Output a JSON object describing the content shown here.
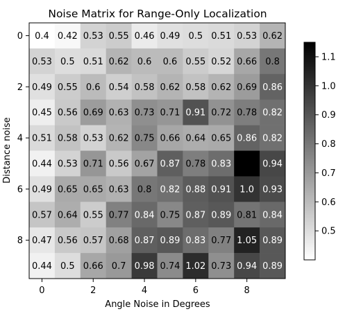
{
  "chart_data": {
    "type": "heatmap",
    "title": "Noise Matrix for Range-Only Localization",
    "xlabel": "Angle Noise in Degrees",
    "ylabel": "Distance noise",
    "x_ticks": [
      "0",
      "2",
      "4",
      "6",
      "8"
    ],
    "y_ticks": [
      "0",
      "2",
      "4",
      "6",
      "8"
    ],
    "colormap": "gray_r",
    "vmin": 0.4,
    "vmax": 1.15,
    "colorbar_ticks": [
      "0.5",
      "0.6",
      "0.7",
      "0.8",
      "0.9",
      "1.0",
      "1.1"
    ],
    "colorbar_tick_values": [
      0.5,
      0.6,
      0.7,
      0.8,
      0.9,
      1.0,
      1.1
    ],
    "values": [
      [
        0.4,
        0.42,
        0.53,
        0.55,
        0.46,
        0.49,
        0.5,
        0.51,
        0.53,
        0.62
      ],
      [
        0.53,
        0.5,
        0.51,
        0.62,
        0.6,
        0.6,
        0.55,
        0.52,
        0.66,
        0.8
      ],
      [
        0.49,
        0.55,
        0.6,
        0.54,
        0.58,
        0.62,
        0.58,
        0.62,
        0.69,
        0.86
      ],
      [
        0.45,
        0.56,
        0.69,
        0.63,
        0.73,
        0.71,
        0.91,
        0.72,
        0.78,
        0.82
      ],
      [
        0.51,
        0.58,
        0.53,
        0.62,
        0.75,
        0.66,
        0.64,
        0.65,
        0.86,
        0.82
      ],
      [
        0.44,
        0.53,
        0.71,
        0.56,
        0.67,
        0.87,
        0.78,
        0.83,
        1.15,
        0.94
      ],
      [
        0.49,
        0.65,
        0.65,
        0.63,
        0.8,
        0.82,
        0.88,
        0.91,
        1.0,
        0.93
      ],
      [
        0.57,
        0.64,
        0.55,
        0.77,
        0.84,
        0.75,
        0.87,
        0.89,
        0.81,
        0.84
      ],
      [
        0.47,
        0.56,
        0.57,
        0.68,
        0.87,
        0.89,
        0.83,
        0.77,
        1.05,
        0.89
      ],
      [
        0.44,
        0.5,
        0.66,
        0.7,
        0.98,
        0.74,
        1.02,
        0.73,
        0.94,
        0.89
      ]
    ],
    "labels": [
      [
        "0.4",
        "0.42",
        "0.53",
        "0.55",
        "0.46",
        "0.49",
        "0.5",
        "0.51",
        "0.53",
        "0.62"
      ],
      [
        "0.53",
        "0.5",
        "0.51",
        "0.62",
        "0.6",
        "0.6",
        "0.55",
        "0.52",
        "0.66",
        "0.8"
      ],
      [
        "0.49",
        "0.55",
        "0.6",
        "0.54",
        "0.58",
        "0.62",
        "0.58",
        "0.62",
        "0.69",
        "0.86"
      ],
      [
        "0.45",
        "0.56",
        "0.69",
        "0.63",
        "0.73",
        "0.71",
        "0.91",
        "0.72",
        "0.78",
        "0.82"
      ],
      [
        "0.51",
        "0.58",
        "0.53",
        "0.62",
        "0.75",
        "0.66",
        "0.64",
        "0.65",
        "0.86",
        "0.82"
      ],
      [
        "0.44",
        "0.53",
        "0.71",
        "0.56",
        "0.67",
        "0.87",
        "0.78",
        "0.83",
        "",
        "0.94"
      ],
      [
        "0.49",
        "0.65",
        "0.65",
        "0.63",
        "0.8",
        "0.82",
        "0.88",
        "0.91",
        "1.0",
        "0.93"
      ],
      [
        "0.57",
        "0.64",
        "0.55",
        "0.77",
        "0.84",
        "0.75",
        "0.87",
        "0.89",
        "0.81",
        "0.84"
      ],
      [
        "0.47",
        "0.56",
        "0.57",
        "0.68",
        "0.87",
        "0.89",
        "0.83",
        "0.77",
        "1.05",
        "0.89"
      ],
      [
        "0.44",
        "0.5",
        "0.66",
        "0.7",
        "0.98",
        "0.74",
        "1.02",
        "0.73",
        "0.94",
        "0.89"
      ]
    ]
  }
}
